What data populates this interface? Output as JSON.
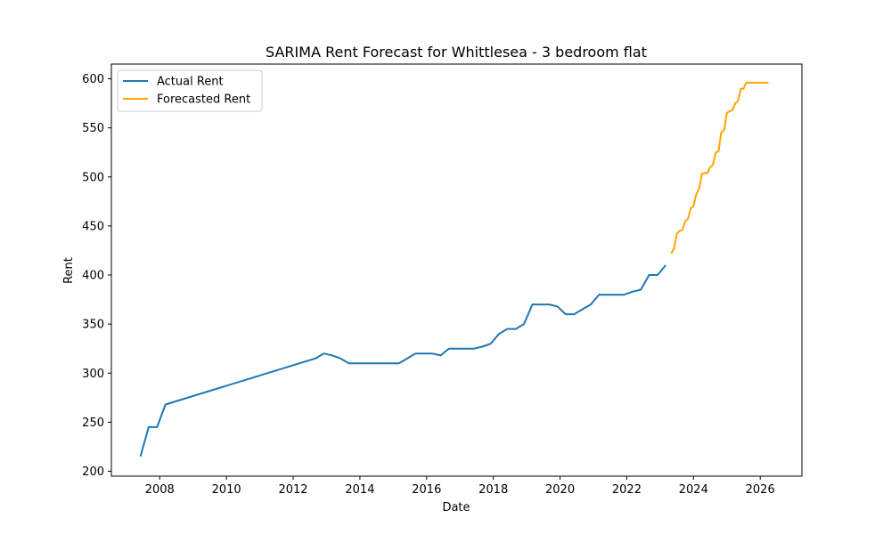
{
  "chart_data": {
    "type": "line",
    "title": "SARIMA Rent Forecast for Whittlesea - 3 bedroom flat",
    "xlabel": "Date",
    "ylabel": "Rent",
    "xlim": [
      2006.55,
      2027.25
    ],
    "ylim": [
      195,
      615
    ],
    "x_ticks": [
      "2008",
      "2010",
      "2012",
      "2014",
      "2016",
      "2018",
      "2020",
      "2022",
      "2024",
      "2026"
    ],
    "y_ticks": [
      "200",
      "250",
      "300",
      "350",
      "400",
      "450",
      "500",
      "550",
      "600"
    ],
    "grid": false,
    "legend_position": "top-left",
    "series": [
      {
        "name": "Actual Rent",
        "color": "#1f77b4",
        "x": [
          2007.42,
          2007.67,
          2007.92,
          2008.17,
          2012.67,
          2012.92,
          2013.17,
          2013.42,
          2013.67,
          2013.92,
          2014.17,
          2014.42,
          2014.67,
          2014.92,
          2015.17,
          2015.42,
          2015.67,
          2015.92,
          2016.17,
          2016.42,
          2016.67,
          2016.92,
          2017.17,
          2017.42,
          2017.67,
          2017.92,
          2018.17,
          2018.42,
          2018.67,
          2018.92,
          2019.17,
          2019.42,
          2019.67,
          2019.92,
          2020.17,
          2020.42,
          2020.67,
          2020.92,
          2021.17,
          2021.42,
          2021.67,
          2021.92,
          2022.17,
          2022.42,
          2022.67,
          2022.92,
          2023.17
        ],
        "values": [
          215,
          245,
          245,
          268,
          315,
          320,
          318,
          315,
          310,
          310,
          310,
          310,
          310,
          310,
          310,
          315,
          320,
          320,
          320,
          318,
          325,
          325,
          325,
          325,
          327,
          330,
          340,
          345,
          345,
          350,
          370,
          370,
          370,
          368,
          360,
          360,
          365,
          370,
          380,
          380,
          380,
          380,
          383,
          385,
          400,
          400,
          410
        ]
      },
      {
        "name": "Forecasted Rent",
        "color": "#ffa500",
        "x": [
          2023.33,
          2023.42,
          2023.5,
          2023.58,
          2023.67,
          2023.75,
          2023.83,
          2023.92,
          2024.0,
          2024.08,
          2024.17,
          2024.25,
          2024.33,
          2024.42,
          2024.5,
          2024.58,
          2024.67,
          2024.75,
          2024.83,
          2024.92,
          2025.0,
          2025.08,
          2025.17,
          2025.25,
          2025.33,
          2025.42,
          2025.5,
          2025.58,
          2025.67,
          2025.75,
          2025.83,
          2025.92,
          2026.0,
          2026.08,
          2026.17,
          2026.25
        ],
        "values": [
          422,
          427,
          442,
          445,
          446,
          455,
          457,
          468,
          470,
          482,
          488,
          503,
          504,
          504,
          510,
          512,
          525,
          526,
          545,
          548,
          565,
          567,
          568,
          575,
          577,
          590,
          590,
          596,
          596,
          596,
          596,
          596,
          596,
          596,
          596,
          596
        ]
      }
    ]
  }
}
